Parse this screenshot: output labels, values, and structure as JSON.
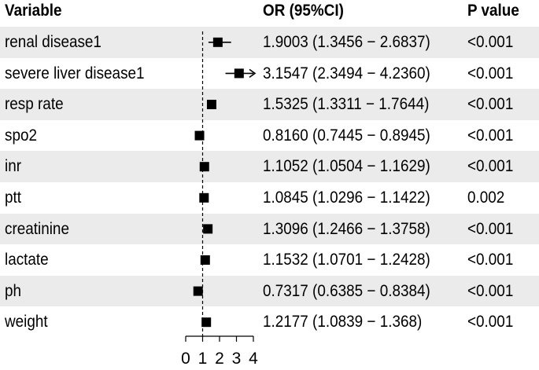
{
  "header": {
    "variable": "Variable",
    "or": "OR (95%CI)",
    "p": "P value"
  },
  "band_color": "#ebebeb",
  "chart_data": {
    "type": "forest",
    "columns": [
      "Variable",
      "OR (95%CI)",
      "P value"
    ],
    "reference_line": 1,
    "xlim": [
      0,
      4
    ],
    "xticks": [
      "0",
      "1",
      "2",
      "3",
      "4"
    ],
    "rows": [
      {
        "variable": "renal disease1",
        "or": 1.9003,
        "lower": 1.3456,
        "upper": 2.6837,
        "ci_text": "1.9003 (1.3456 − 2.6837)",
        "p": "<0.001"
      },
      {
        "variable": "severe liver disease1",
        "or": 3.1547,
        "lower": 2.3494,
        "upper": 4.236,
        "ci_text": "3.1547 (2.3494 − 4.2360)",
        "p": "<0.001",
        "arrow": true
      },
      {
        "variable": "resp rate",
        "or": 1.5325,
        "lower": 1.3311,
        "upper": 1.7644,
        "ci_text": "1.5325 (1.3311 − 1.7644)",
        "p": "<0.001"
      },
      {
        "variable": "spo2",
        "or": 0.816,
        "lower": 0.7445,
        "upper": 0.8945,
        "ci_text": "0.8160 (0.7445 − 0.8945)",
        "p": "<0.001"
      },
      {
        "variable": "inr",
        "or": 1.1052,
        "lower": 1.0504,
        "upper": 1.1629,
        "ci_text": "1.1052 (1.0504 − 1.1629)",
        "p": "<0.001"
      },
      {
        "variable": "ptt",
        "or": 1.0845,
        "lower": 1.0296,
        "upper": 1.1422,
        "ci_text": "1.0845 (1.0296 − 1.1422)",
        "p": "0.002"
      },
      {
        "variable": "creatinine",
        "or": 1.3096,
        "lower": 1.2466,
        "upper": 1.3758,
        "ci_text": "1.3096 (1.2466 − 1.3758)",
        "p": "<0.001"
      },
      {
        "variable": "lactate",
        "or": 1.1532,
        "lower": 1.0701,
        "upper": 1.2428,
        "ci_text": "1.1532 (1.0701 − 1.2428)",
        "p": "<0.001"
      },
      {
        "variable": "ph",
        "or": 0.7317,
        "lower": 0.6385,
        "upper": 0.8384,
        "ci_text": "0.7317 (0.6385 − 0.8384)",
        "p": "<0.001"
      },
      {
        "variable": "weight",
        "or": 1.2177,
        "lower": 1.0839,
        "upper": 1.368,
        "ci_text": "1.2177 (1.0839 − 1.368)",
        "p": "<0.001"
      }
    ]
  }
}
